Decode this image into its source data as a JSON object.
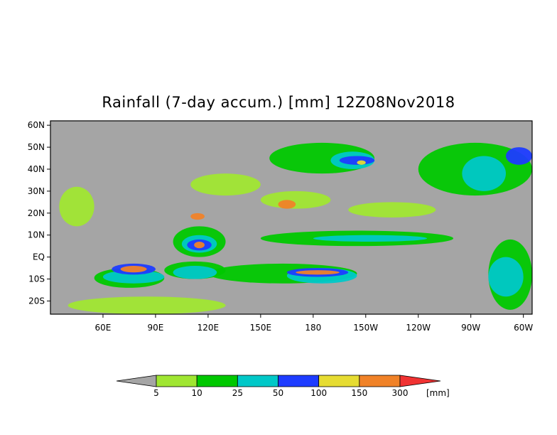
{
  "chart_data": {
    "type": "heatmap",
    "title": "Rainfall (7-day accum.) [mm] 12Z08Nov2018",
    "xlabel": "",
    "ylabel": "",
    "xlim": [
      30,
      305
    ],
    "ylim": [
      -26,
      62
    ],
    "x_ticks": [
      {
        "lon": 60,
        "label": "60E"
      },
      {
        "lon": 90,
        "label": "90E"
      },
      {
        "lon": 120,
        "label": "120E"
      },
      {
        "lon": 150,
        "label": "150E"
      },
      {
        "lon": 180,
        "label": "180"
      },
      {
        "lon": 210,
        "label": "150W"
      },
      {
        "lon": 240,
        "label": "120W"
      },
      {
        "lon": 270,
        "label": "90W"
      },
      {
        "lon": 300,
        "label": "60W"
      }
    ],
    "y_ticks": [
      {
        "lat": 60,
        "label": "60N"
      },
      {
        "lat": 50,
        "label": "50N"
      },
      {
        "lat": 40,
        "label": "40N"
      },
      {
        "lat": 30,
        "label": "30N"
      },
      {
        "lat": 20,
        "label": "20N"
      },
      {
        "lat": 10,
        "label": "10N"
      },
      {
        "lat": 0,
        "label": "EQ"
      },
      {
        "lat": -10,
        "label": "10S"
      },
      {
        "lat": -20,
        "label": "20S"
      }
    ],
    "background_color": "#a5a5a5",
    "colorbar": {
      "unit": "[mm]",
      "under_color": "#a5a5a5",
      "over_color": "#f03232",
      "bins": [
        {
          "color": "#a0e632",
          "label": "5"
        },
        {
          "color": "#00c800",
          "label": "10"
        },
        {
          "color": "#00c8c8",
          "label": "25"
        },
        {
          "color": "#1e3cff",
          "label": "50"
        },
        {
          "color": "#e6dc32",
          "label": "100"
        },
        {
          "color": "#f08228",
          "label": "150"
        },
        {
          "color": "",
          "label": "300"
        }
      ]
    },
    "regions": [
      {
        "lon": [
          55,
          95
        ],
        "lat": [
          -5,
          -14
        ],
        "level": 1
      },
      {
        "lon": [
          95,
          130
        ],
        "lat": [
          -2,
          -10
        ],
        "level": 1
      },
      {
        "lon": [
          100,
          130
        ],
        "lat": [
          14,
          0
        ],
        "level": 1
      },
      {
        "lon": [
          120,
          205
        ],
        "lat": [
          -3,
          -12
        ],
        "level": 1
      },
      {
        "lon": [
          150,
          260
        ],
        "lat": [
          12,
          5
        ],
        "level": 1
      },
      {
        "lon": [
          155,
          215
        ],
        "lat": [
          52,
          38
        ],
        "level": 1
      },
      {
        "lon": [
          240,
          305
        ],
        "lat": [
          52,
          28
        ],
        "level": 1
      },
      {
        "lon": [
          280,
          305
        ],
        "lat": [
          8,
          -24
        ],
        "level": 1
      },
      {
        "lon": [
          35,
          55
        ],
        "lat": [
          32,
          14
        ],
        "level": 0
      },
      {
        "lon": [
          110,
          150
        ],
        "lat": [
          38,
          28
        ],
        "level": 0
      },
      {
        "lon": [
          150,
          190
        ],
        "lat": [
          30,
          22
        ],
        "level": 0
      },
      {
        "lon": [
          200,
          250
        ],
        "lat": [
          25,
          18
        ],
        "level": 0
      },
      {
        "lon": [
          40,
          130
        ],
        "lat": [
          -18,
          -26
        ],
        "level": 0
      },
      {
        "lon": [
          60,
          95
        ],
        "lat": [
          -6,
          -12
        ],
        "level": 2
      },
      {
        "lon": [
          100,
          125
        ],
        "lat": [
          -4,
          -10
        ],
        "level": 2
      },
      {
        "lon": [
          105,
          125
        ],
        "lat": [
          10,
          2
        ],
        "level": 2
      },
      {
        "lon": [
          165,
          205
        ],
        "lat": [
          -5,
          -12
        ],
        "level": 2
      },
      {
        "lon": [
          180,
          245
        ],
        "lat": [
          10,
          7
        ],
        "level": 2
      },
      {
        "lon": [
          190,
          215
        ],
        "lat": [
          48,
          40
        ],
        "level": 2
      },
      {
        "lon": [
          265,
          290
        ],
        "lat": [
          46,
          30
        ],
        "level": 2
      },
      {
        "lon": [
          280,
          300
        ],
        "lat": [
          0,
          -18
        ],
        "level": 2
      },
      {
        "lon": [
          65,
          90
        ],
        "lat": [
          -3,
          -8
        ],
        "level": 3
      },
      {
        "lon": [
          108,
          122
        ],
        "lat": [
          8,
          3
        ],
        "level": 3
      },
      {
        "lon": [
          165,
          200
        ],
        "lat": [
          -5,
          -9
        ],
        "level": 3
      },
      {
        "lon": [
          195,
          215
        ],
        "lat": [
          46,
          42
        ],
        "level": 3
      },
      {
        "lon": [
          290,
          305
        ],
        "lat": [
          50,
          42
        ],
        "level": 3
      },
      {
        "lon": [
          70,
          85
        ],
        "lat": [
          -4,
          -7
        ],
        "level": 5
      },
      {
        "lon": [
          112,
          118
        ],
        "lat": [
          7,
          4
        ],
        "level": 5
      },
      {
        "lon": [
          170,
          195
        ],
        "lat": [
          -6,
          -8
        ],
        "level": 5
      },
      {
        "lon": [
          205,
          210
        ],
        "lat": [
          44,
          42
        ],
        "level": 4
      },
      {
        "lon": [
          160,
          170
        ],
        "lat": [
          26,
          22
        ],
        "level": 5
      },
      {
        "lon": [
          110,
          118
        ],
        "lat": [
          20,
          17
        ],
        "level": 5
      }
    ]
  }
}
